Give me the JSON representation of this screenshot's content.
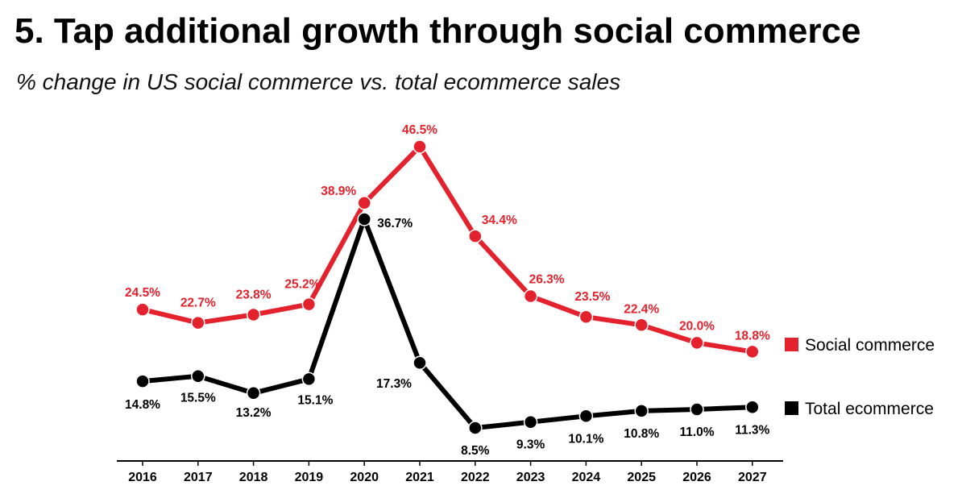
{
  "chart_data": {
    "type": "line",
    "title": "5. Tap additional growth through social commerce",
    "subtitle": "% change in US social commerce vs. total ecommerce sales",
    "x": [
      "2016",
      "2017",
      "2018",
      "2019",
      "2020",
      "2021",
      "2022",
      "2023",
      "2024",
      "2025",
      "2026",
      "2027"
    ],
    "series": [
      {
        "name": "Social commerce",
        "color": "#e4222e",
        "values": [
          24.5,
          22.7,
          23.8,
          25.2,
          38.9,
          46.5,
          34.4,
          26.3,
          23.5,
          22.4,
          20.0,
          18.8
        ],
        "labels": [
          "24.5%",
          "22.7%",
          "23.8%",
          "25.2%",
          "38.9%",
          "46.5%",
          "34.4%",
          "26.3%",
          "23.5%",
          "22.4%",
          "20.0%",
          "18.8%"
        ]
      },
      {
        "name": "Total ecommerce",
        "color": "#000000",
        "values": [
          14.8,
          15.5,
          13.2,
          15.1,
          36.7,
          17.3,
          8.5,
          9.3,
          10.1,
          10.8,
          11.0,
          11.3
        ],
        "labels": [
          "14.8%",
          "15.5%",
          "13.2%",
          "15.1%",
          "36.7%",
          "17.3%",
          "8.5%",
          "9.3%",
          "10.1%",
          "10.8%",
          "11.0%",
          "11.3%"
        ]
      }
    ],
    "xlabel": "",
    "ylabel": "",
    "legend_position": "right",
    "grid": false
  }
}
